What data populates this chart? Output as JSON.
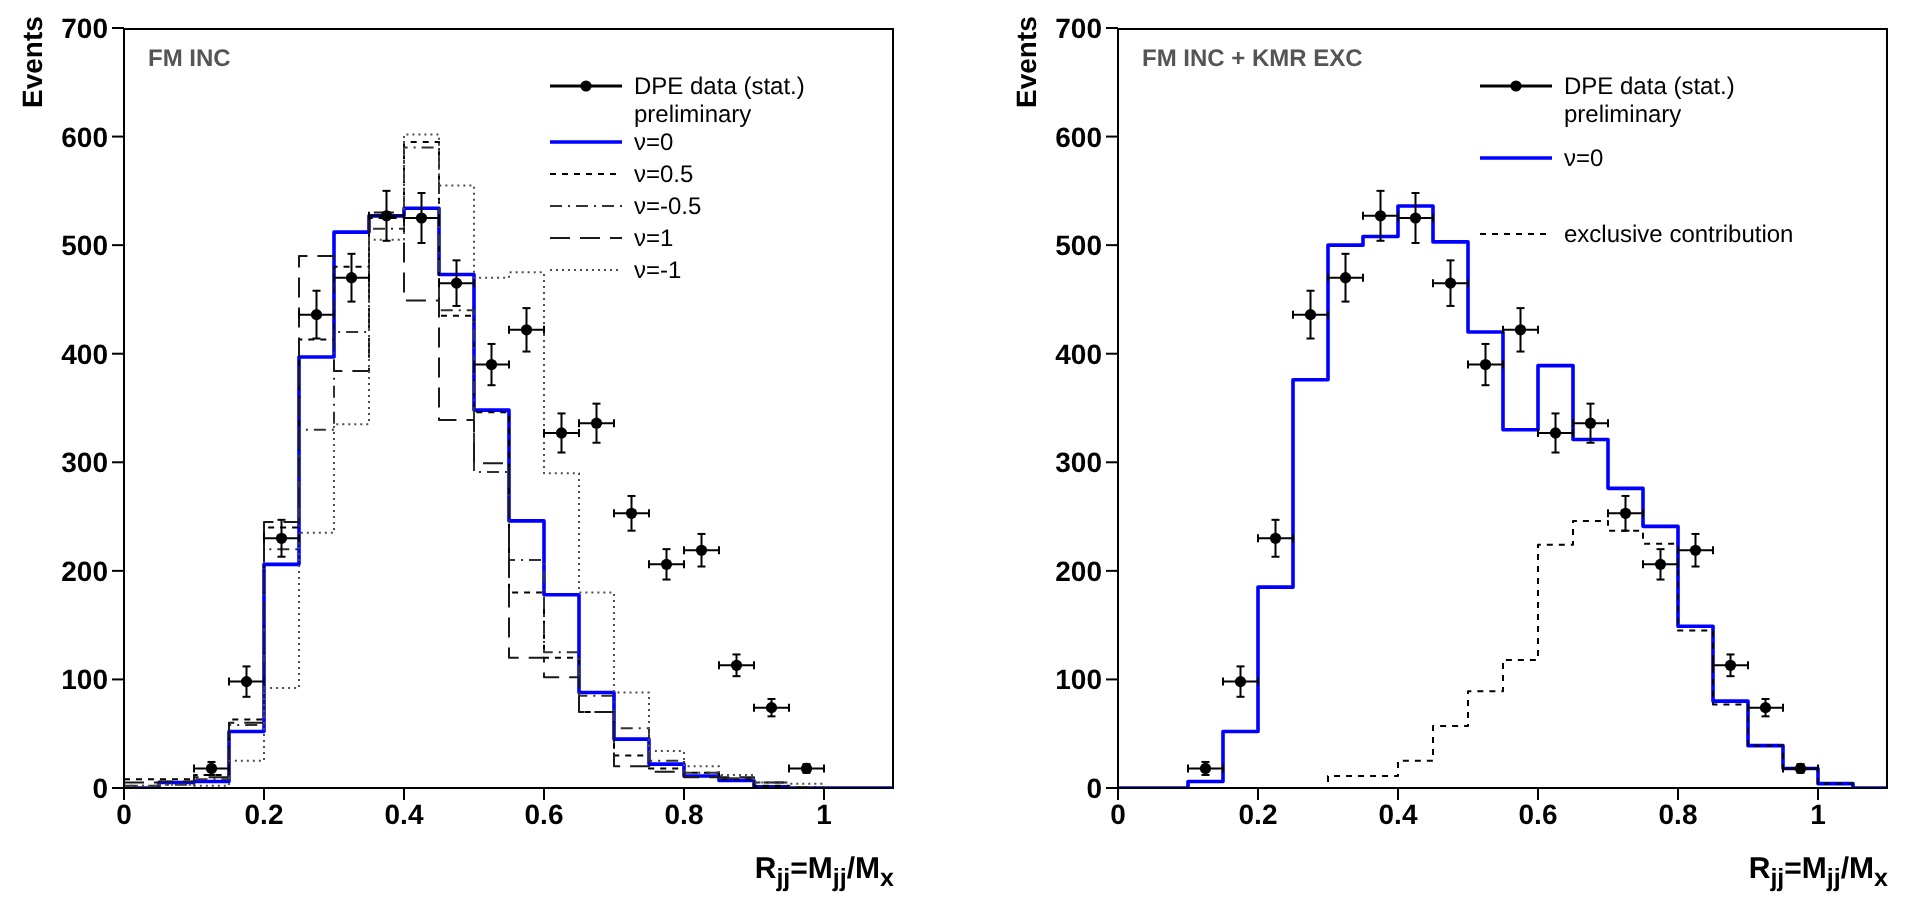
{
  "chart_data": [
    {
      "type": "histogram",
      "title": "FM INC",
      "xlabel": "R$_{jj}$=M$_{jj}$/M$_{x}$",
      "ylabel": "Events",
      "bins": [
        0,
        0.05,
        0.1,
        0.15,
        0.2,
        0.25,
        0.3,
        0.35,
        0.4,
        0.45,
        0.5,
        0.55,
        0.6,
        0.65,
        0.7,
        0.75,
        0.8,
        0.85,
        0.9,
        0.95,
        1,
        1.05,
        1.1
      ],
      "xlim": [
        0,
        1.1
      ],
      "xticks": [
        0,
        0.2,
        0.4,
        0.6,
        0.8,
        1
      ],
      "ylim": [
        0,
        700
      ],
      "yticks": [
        0,
        100,
        200,
        300,
        400,
        500,
        600,
        700
      ],
      "legend": "top right",
      "series": [
        {
          "type": "scatter",
          "name": "DPE data (stat.)\npreliminary",
          "color": "#000000",
          "marker": "circle",
          "x": [
            0.125,
            0.175,
            0.225,
            0.275,
            0.325,
            0.375,
            0.425,
            0.475,
            0.525,
            0.575,
            0.625,
            0.675,
            0.725,
            0.775,
            0.825,
            0.875,
            0.925,
            0.975
          ],
          "values": [
            18,
            98,
            230,
            436,
            470,
            527,
            525,
            465,
            390,
            422,
            327,
            336,
            253,
            206,
            219,
            113,
            74,
            18
          ],
          "errors": [
            6,
            14,
            17,
            22,
            22,
            23,
            23,
            21,
            19,
            20,
            18,
            18,
            16,
            14,
            15,
            10,
            8,
            4
          ],
          "xerrors": [
            0.025,
            0.025,
            0.025,
            0.025,
            0.025,
            0.025,
            0.025,
            0.025,
            0.025,
            0.025,
            0.025,
            0.025,
            0.025,
            0.025,
            0.025,
            0.025,
            0.025,
            0.025
          ]
        },
        {
          "name": "ν=0",
          "color": "#0000ff",
          "line_style": "solid",
          "values": [
            0,
            5,
            6,
            52,
            206,
            397,
            512,
            527,
            534,
            473,
            348,
            246,
            178,
            88,
            45,
            22,
            11,
            7,
            1,
            0,
            0,
            0
          ]
        },
        {
          "name": "ν=0.5",
          "color": "#000000",
          "line_style": "dashed",
          "values": [
            8,
            8,
            12,
            63,
            240,
            413,
            480,
            525,
            595,
            435,
            346,
            180,
            120,
            70,
            30,
            18,
            14,
            8,
            2,
            0,
            0,
            0
          ]
        },
        {
          "name": "ν=-0.5",
          "color": "#333333",
          "line_style": "dashdot",
          "values": [
            2,
            3,
            8,
            58,
            220,
            330,
            420,
            515,
            590,
            440,
            291,
            210,
            125,
            85,
            55,
            25,
            14,
            9,
            5,
            1,
            0,
            0
          ]
        },
        {
          "name": "ν=1",
          "color": "#1a1a1a",
          "line_style": "longdash",
          "values": [
            5,
            6,
            10,
            60,
            245,
            490,
            384,
            530,
            449,
            339,
            299,
            120,
            102,
            70,
            20,
            15,
            10,
            10,
            5,
            0,
            0,
            0
          ]
        },
        {
          "name": "ν=-1",
          "color": "#4d4d4d",
          "line_style": "dotted",
          "values": [
            2,
            3,
            2,
            25,
            92,
            235,
            335,
            505,
            602,
            555,
            470,
            475,
            290,
            180,
            88,
            34,
            20,
            12,
            5,
            4,
            0,
            0
          ]
        }
      ]
    },
    {
      "type": "histogram",
      "title": "FM INC + KMR EXC",
      "xlabel": "R$_{jj}$=M$_{jj}$/M$_{x}$",
      "ylabel": "Events",
      "bins": [
        0,
        0.05,
        0.1,
        0.15,
        0.2,
        0.25,
        0.3,
        0.35,
        0.4,
        0.45,
        0.5,
        0.55,
        0.6,
        0.65,
        0.7,
        0.75,
        0.8,
        0.85,
        0.9,
        0.95,
        1,
        1.05,
        1.1
      ],
      "xlim": [
        0,
        1.1
      ],
      "xticks": [
        0,
        0.2,
        0.4,
        0.6,
        0.8,
        1
      ],
      "ylim": [
        0,
        700
      ],
      "yticks": [
        0,
        100,
        200,
        300,
        400,
        500,
        600,
        700
      ],
      "legend": "top right",
      "series": [
        {
          "type": "scatter",
          "name": "DPE data (stat.)\npreliminary",
          "color": "#000000",
          "marker": "circle",
          "x": [
            0.125,
            0.175,
            0.225,
            0.275,
            0.325,
            0.375,
            0.425,
            0.475,
            0.525,
            0.575,
            0.625,
            0.675,
            0.725,
            0.775,
            0.825,
            0.875,
            0.925,
            0.975
          ],
          "values": [
            18,
            98,
            230,
            436,
            470,
            527,
            525,
            465,
            390,
            422,
            327,
            336,
            253,
            206,
            219,
            113,
            74,
            18
          ],
          "errors": [
            6,
            14,
            17,
            22,
            22,
            23,
            23,
            21,
            19,
            20,
            18,
            18,
            16,
            14,
            15,
            10,
            8,
            4
          ],
          "xerrors": [
            0.025,
            0.025,
            0.025,
            0.025,
            0.025,
            0.025,
            0.025,
            0.025,
            0.025,
            0.025,
            0.025,
            0.025,
            0.025,
            0.025,
            0.025,
            0.025,
            0.025,
            0.025
          ]
        },
        {
          "name": "ν=0",
          "color": "#0000ff",
          "line_style": "solid",
          "values": [
            0,
            0,
            6,
            52,
            185,
            376,
            500,
            508,
            536,
            503,
            420,
            330,
            389,
            321,
            276,
            241,
            149,
            80,
            39,
            18,
            4,
            0
          ]
        },
        {
          "name": "exclusive contribution",
          "color": "#000000",
          "line_style": "dashed",
          "values": [
            0,
            0,
            0,
            0,
            0,
            0,
            11,
            11,
            25,
            57,
            89,
            118,
            224,
            246,
            237,
            225,
            145,
            77,
            39,
            18,
            4,
            0
          ]
        }
      ]
    }
  ]
}
